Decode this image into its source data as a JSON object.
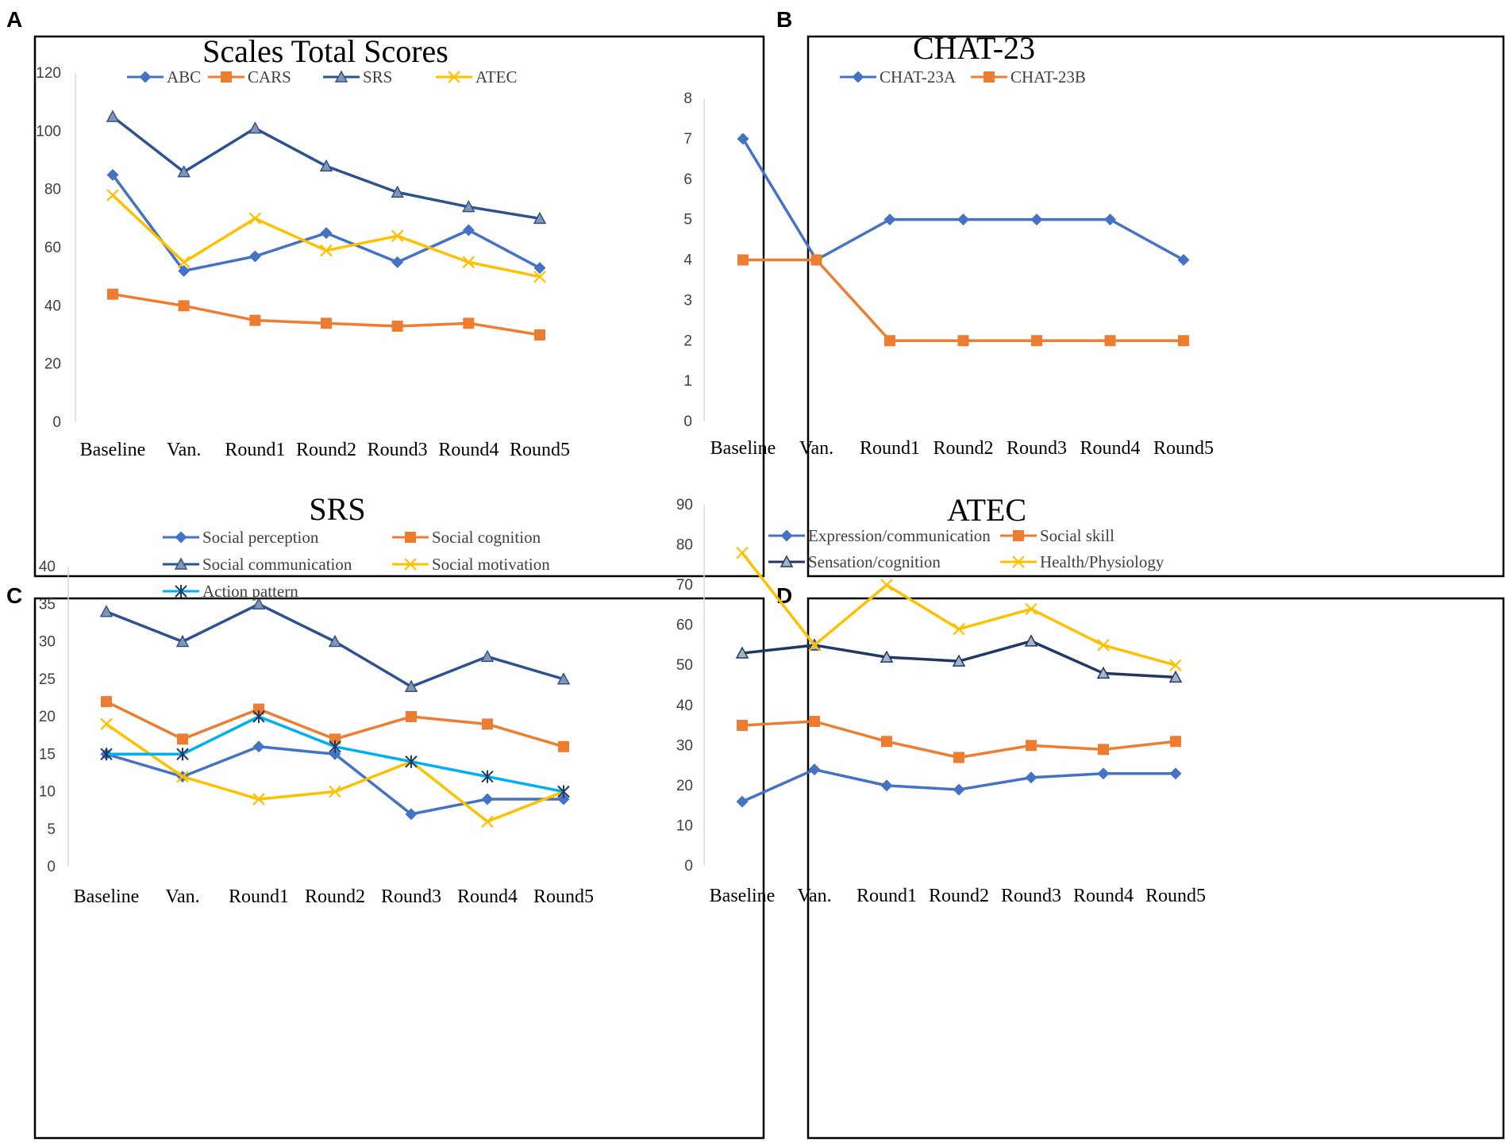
{
  "panel_letters": {
    "a": "A",
    "b": "B",
    "c": "C",
    "d": "D"
  },
  "chart_data": [
    {
      "id": "A",
      "type": "line",
      "title": "Scales Total Scores",
      "xlabel": "",
      "ylabel": "",
      "categories": [
        "Baseline",
        "Van.",
        "Round1",
        "Round2",
        "Round3",
        "Round4",
        "Round5"
      ],
      "ylim": [
        0,
        120
      ],
      "yticks": [
        0,
        20,
        40,
        60,
        80,
        100,
        120
      ],
      "grid": false,
      "legend_position": "top",
      "series": [
        {
          "name": "ABC",
          "marker": "diamond",
          "color": "#4472C4",
          "values": [
            85,
            52,
            57,
            65,
            55,
            66,
            53
          ]
        },
        {
          "name": "CARS",
          "marker": "square",
          "color": "#ED7D31",
          "values": [
            44,
            40,
            35,
            34,
            33,
            34,
            30
          ]
        },
        {
          "name": "SRS",
          "marker": "triangle",
          "color": "#2F528F",
          "values": [
            105,
            86,
            101,
            88,
            79,
            74,
            70
          ]
        },
        {
          "name": "ATEC",
          "marker": "x",
          "color": "#FFC000",
          "values": [
            78,
            55,
            70,
            59,
            64,
            55,
            50
          ]
        }
      ]
    },
    {
      "id": "B",
      "type": "line",
      "title": "CHAT-23",
      "xlabel": "",
      "ylabel": "",
      "categories": [
        "Baseline",
        "Van.",
        "Round1",
        "Round2",
        "Round3",
        "Round4",
        "Round5"
      ],
      "ylim": [
        0,
        8
      ],
      "yticks": [
        0,
        1,
        2,
        3,
        4,
        5,
        6,
        7,
        8
      ],
      "grid": false,
      "legend_position": "top",
      "series": [
        {
          "name": "CHAT-23A",
          "marker": "diamond",
          "color": "#4472C4",
          "values": [
            7,
            4,
            5,
            5,
            5,
            5,
            4
          ]
        },
        {
          "name": "CHAT-23B",
          "marker": "square",
          "color": "#ED7D31",
          "values": [
            4,
            4,
            2,
            2,
            2,
            2,
            2
          ]
        }
      ]
    },
    {
      "id": "C",
      "type": "line",
      "title": "SRS",
      "xlabel": "",
      "ylabel": "",
      "categories": [
        "Baseline",
        "Van.",
        "Round1",
        "Round2",
        "Round3",
        "Round4",
        "Round5"
      ],
      "ylim": [
        0,
        40
      ],
      "yticks": [
        0,
        5,
        10,
        15,
        20,
        25,
        30,
        35,
        40
      ],
      "grid": false,
      "legend_position": "top",
      "series": [
        {
          "name": "Social perception",
          "marker": "diamond",
          "color": "#4472C4",
          "values": [
            15,
            12,
            16,
            15,
            7,
            9,
            9
          ]
        },
        {
          "name": "Social cognition",
          "marker": "square",
          "color": "#ED7D31",
          "values": [
            22,
            17,
            21,
            17,
            20,
            19,
            16
          ]
        },
        {
          "name": "Social communication",
          "marker": "triangle",
          "color": "#2F528F",
          "values": [
            34,
            30,
            35,
            30,
            24,
            28,
            25
          ]
        },
        {
          "name": "Social motivation",
          "marker": "x",
          "color": "#FFC000",
          "values": [
            19,
            12,
            9,
            10,
            14,
            6,
            10
          ]
        },
        {
          "name": "Action pattern",
          "marker": "star",
          "color": "#00B0F0",
          "values": [
            15,
            15,
            20,
            16,
            14,
            12,
            10
          ]
        }
      ]
    },
    {
      "id": "D",
      "type": "line",
      "title": "ATEC",
      "xlabel": "",
      "ylabel": "",
      "categories": [
        "Baseline",
        "Van.",
        "Round1",
        "Round2",
        "Round3",
        "Round4",
        "Round5"
      ],
      "ylim": [
        0,
        90
      ],
      "yticks": [
        0,
        10,
        20,
        30,
        40,
        50,
        60,
        70,
        80,
        90
      ],
      "grid": false,
      "legend_position": "top",
      "series": [
        {
          "name": "Expression/communication",
          "marker": "diamond",
          "color": "#4472C4",
          "values": [
            16,
            24,
            20,
            19,
            22,
            23,
            23
          ]
        },
        {
          "name": "Social skill",
          "marker": "square",
          "color": "#ED7D31",
          "values": [
            35,
            36,
            31,
            27,
            30,
            29,
            31
          ]
        },
        {
          "name": "Sensation/cognition",
          "marker": "triangle-filled-grey",
          "color": "#1F3864",
          "values": [
            53,
            55,
            52,
            51,
            56,
            48,
            47
          ]
        },
        {
          "name": "Health/Physiology",
          "marker": "x",
          "color": "#FFC000",
          "values": [
            78,
            55,
            70,
            59,
            64,
            55,
            50
          ]
        }
      ]
    }
  ]
}
